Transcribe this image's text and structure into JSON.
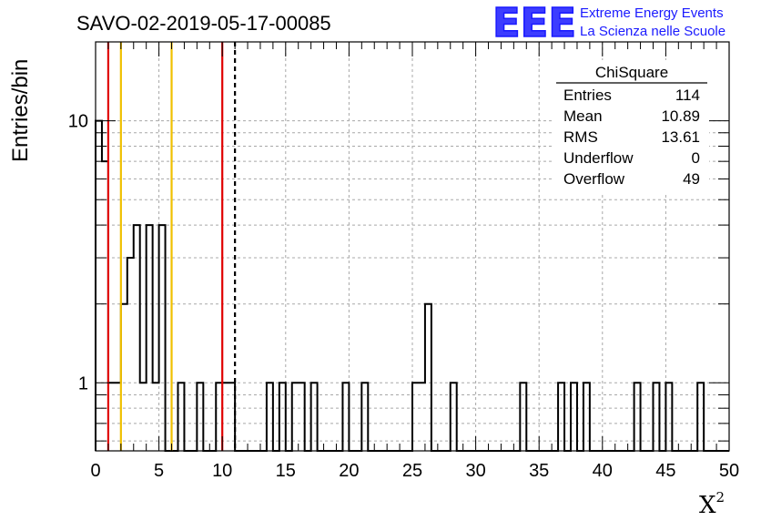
{
  "chart_data": {
    "type": "histogram",
    "title": "SAVO-02-2019-05-17-00085",
    "xlabel": "X",
    "xlabel_superscript": "2",
    "ylabel": "Entries/bin",
    "xlim": [
      0,
      50
    ],
    "ylim": [
      0.55,
      20
    ],
    "log_y": true,
    "grid": true,
    "x_ticks": [
      "0",
      "5",
      "10",
      "15",
      "20",
      "25",
      "30",
      "35",
      "40",
      "45",
      "50"
    ],
    "y_ticks": [
      "1",
      "10"
    ],
    "bin_width": 0.5,
    "bins": [
      {
        "x": 0.0,
        "y": 10
      },
      {
        "x": 0.5,
        "y": 7
      },
      {
        "x": 1.0,
        "y": 1
      },
      {
        "x": 1.5,
        "y": 1
      },
      {
        "x": 2.0,
        "y": 2
      },
      {
        "x": 2.5,
        "y": 3
      },
      {
        "x": 3.0,
        "y": 4
      },
      {
        "x": 3.5,
        "y": 1
      },
      {
        "x": 4.0,
        "y": 4
      },
      {
        "x": 4.5,
        "y": 1
      },
      {
        "x": 5.0,
        "y": 4
      },
      {
        "x": 6.5,
        "y": 1
      },
      {
        "x": 8.0,
        "y": 1
      },
      {
        "x": 9.5,
        "y": 1
      },
      {
        "x": 10.0,
        "y": 1
      },
      {
        "x": 10.5,
        "y": 1
      },
      {
        "x": 13.5,
        "y": 1
      },
      {
        "x": 14.5,
        "y": 1
      },
      {
        "x": 15.5,
        "y": 1
      },
      {
        "x": 16.0,
        "y": 1
      },
      {
        "x": 17.0,
        "y": 1
      },
      {
        "x": 19.5,
        "y": 1
      },
      {
        "x": 21.0,
        "y": 1
      },
      {
        "x": 25.0,
        "y": 1
      },
      {
        "x": 25.5,
        "y": 1
      },
      {
        "x": 26.0,
        "y": 2
      },
      {
        "x": 28.0,
        "y": 1
      },
      {
        "x": 33.5,
        "y": 1
      },
      {
        "x": 36.5,
        "y": 1
      },
      {
        "x": 37.5,
        "y": 1
      },
      {
        "x": 38.5,
        "y": 1
      },
      {
        "x": 42.5,
        "y": 1
      },
      {
        "x": 44.0,
        "y": 1
      },
      {
        "x": 45.0,
        "y": 1
      },
      {
        "x": 47.5,
        "y": 1
      }
    ],
    "vertical_lines": [
      {
        "x": 1,
        "color": "#e00000",
        "style": "solid"
      },
      {
        "x": 2,
        "color": "#f0c000",
        "style": "solid"
      },
      {
        "x": 6,
        "color": "#f0c000",
        "style": "solid"
      },
      {
        "x": 10,
        "color": "#e00000",
        "style": "solid"
      },
      {
        "x": 11,
        "color": "#000000",
        "style": "dashed"
      }
    ],
    "stats_box": {
      "title": "ChiSquare",
      "rows": [
        {
          "label": "Entries",
          "value": "114"
        },
        {
          "label": "Mean",
          "value": "10.89"
        },
        {
          "label": "RMS",
          "value": "13.61"
        },
        {
          "label": "Underflow",
          "value": "0"
        },
        {
          "label": "Overflow",
          "value": "49"
        }
      ]
    }
  },
  "logo": {
    "text": "EEE",
    "line1": "Extreme Energy Events",
    "line2": "La Scienza nelle Scuole",
    "color": "#1a1aff"
  }
}
